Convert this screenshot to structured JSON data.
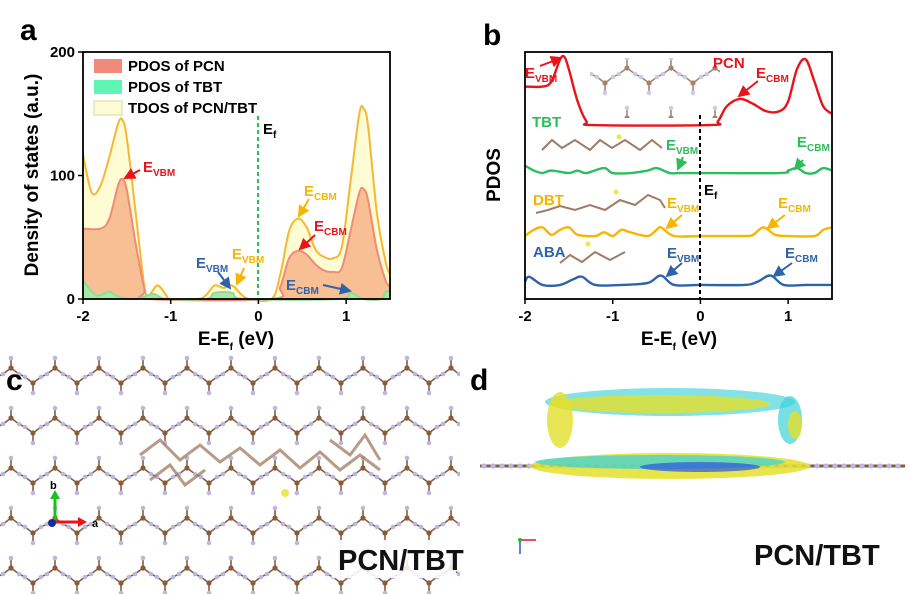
{
  "chart_data": [
    {
      "panel": "a",
      "type": "area",
      "panel_label": "a",
      "xlabel": {
        "main": "E-E",
        "sub": "f",
        "tail": " (eV)"
      },
      "ylabel": "Density of states (a.u.)",
      "xlim": [
        -2,
        1.5
      ],
      "ylim": [
        0,
        200
      ],
      "xticks": [
        "-2",
        "-1",
        "0",
        "1"
      ],
      "xtick_values": [
        -2,
        -1,
        0,
        1
      ],
      "yticks": [
        "0",
        "100",
        "200"
      ],
      "ytick_values": [
        0,
        100,
        200
      ],
      "legend_position": "top-left",
      "series": [
        {
          "name": "TDOS of PCN/TBT",
          "fill": "#fdfcd2",
          "stroke": "#f7b733",
          "x": [
            -2,
            -1.9,
            -1.8,
            -1.7,
            -1.6,
            -1.55,
            -1.5,
            -1.4,
            -1.3,
            -1.25,
            -1.15,
            -1.05,
            -1,
            -0.7,
            -0.6,
            -0.5,
            -0.4,
            -0.3,
            -0.2,
            -0.1,
            0.15,
            0.25,
            0.35,
            0.45,
            0.55,
            0.65,
            0.75,
            0.85,
            0.95,
            1.05,
            1.15,
            1.2,
            1.25,
            1.35,
            1.45,
            1.5
          ],
          "y": [
            117,
            86,
            92,
            115,
            142,
            145,
            130,
            70,
            10,
            3,
            11,
            3,
            0,
            0,
            3,
            11,
            9,
            11,
            4,
            0,
            0,
            20,
            55,
            65,
            58,
            40,
            34,
            33,
            42,
            95,
            150,
            154,
            140,
            70,
            30,
            20
          ]
        },
        {
          "name": "PDOS of PCN",
          "fill": "#f9bf94",
          "stroke": "#f08a7a",
          "x": [
            -2,
            -1.8,
            -1.7,
            -1.6,
            -1.55,
            -1.5,
            -1.4,
            -1.3,
            -1.25,
            0.15,
            0.25,
            0.35,
            0.45,
            0.55,
            0.65,
            0.75,
            0.85,
            0.95,
            1.05,
            1.15,
            1.2,
            1.25,
            1.35,
            1.45,
            1.5
          ],
          "y": [
            57,
            57,
            65,
            92,
            97,
            88,
            45,
            8,
            0,
            0,
            10,
            33,
            39,
            36,
            28,
            23,
            22,
            25,
            55,
            86,
            89,
            80,
            40,
            15,
            10
          ]
        },
        {
          "name": "PDOS of TBT",
          "fill": "#a6e9a6",
          "stroke": "#8fdc9a",
          "x": [
            -2,
            -1.85,
            -1.7,
            -1.6,
            -1.4,
            -1.2,
            -1.05,
            -0.6,
            -0.5,
            -0.3,
            -0.15,
            0.9,
            1.05,
            1.2,
            1.4,
            1.45,
            1.5
          ],
          "y": [
            15,
            3,
            6,
            2,
            0,
            4,
            0,
            0,
            5,
            5,
            0,
            0,
            5,
            0,
            0,
            6,
            6
          ]
        }
      ],
      "legend": [
        {
          "label": "PDOS of PCN",
          "color": "#f08a7a"
        },
        {
          "label": "PDOS of TBT",
          "color": "#5ef5b5"
        },
        {
          "label": "TDOS of PCN/TBT",
          "color": "#fdfcd2"
        }
      ],
      "fermi_label": {
        "main": "E",
        "sub": "f"
      },
      "annotations": [
        {
          "main": "E",
          "sub": "VBM",
          "color": "#e8141a"
        },
        {
          "main": "E",
          "sub": "VBM",
          "color": "#2f63a8"
        },
        {
          "main": "E",
          "sub": "VBM",
          "color": "#f7b500"
        },
        {
          "main": "E",
          "sub": "CBM",
          "color": "#f7b500"
        },
        {
          "main": "E",
          "sub": "CBM",
          "color": "#e8141a"
        },
        {
          "main": "E",
          "sub": "CBM",
          "color": "#2f63a8"
        }
      ]
    },
    {
      "panel": "b",
      "type": "line",
      "panel_label": "b",
      "xlabel": {
        "main": "E-E",
        "sub": "f",
        "tail": " (eV)"
      },
      "ylabel": "PDOS",
      "xlim": [
        -2,
        1.5
      ],
      "ylim": [
        0,
        100
      ],
      "xticks": [
        "-2",
        "-1",
        "0",
        "1"
      ],
      "xtick_values": [
        -2,
        -1,
        0,
        1
      ],
      "series": [
        {
          "name": "PCN",
          "color": "#e8141a",
          "x": [
            -2,
            -1.8,
            -1.7,
            -1.6,
            -1.55,
            -1.5,
            -1.4,
            -1.3,
            -1.2,
            0.1,
            0.2,
            0.3,
            0.45,
            0.6,
            0.75,
            0.9,
            1.0,
            1.1,
            1.2,
            1.3,
            1.4,
            1.5
          ],
          "y": [
            86,
            86,
            88,
            97,
            98,
            93,
            80,
            72,
            70.4,
            70.4,
            72,
            78,
            81,
            79,
            76,
            76,
            80,
            93,
            97,
            88,
            78,
            75
          ]
        },
        {
          "name": "TBT",
          "color": "#2cbd5c",
          "x": [
            -2,
            -1.9,
            -1.8,
            -1.7,
            -1.5,
            -1.4,
            -1.3,
            -1.1,
            -1.0,
            -0.8,
            -0.6,
            -0.5,
            -0.35,
            -0.25,
            0,
            0.9,
            1.0,
            1.1,
            1.2,
            1.3,
            1.4,
            1.5
          ],
          "y": [
            54,
            52,
            51,
            52,
            51,
            52,
            51,
            53,
            51,
            51,
            52,
            53,
            51,
            51,
            51,
            51,
            52,
            53,
            51,
            51,
            53,
            52
          ]
        },
        {
          "name": "DBT",
          "color": "#f7b500",
          "x": [
            -2,
            -1.9,
            -1.8,
            -1.7,
            -1.6,
            -1.5,
            -1.4,
            -1.2,
            -1.1,
            -1.0,
            -0.9,
            -0.8,
            -0.6,
            -0.5,
            -0.45,
            -0.3,
            0,
            0.5,
            0.6,
            0.72,
            0.85,
            1.0,
            1.3,
            1.4,
            1.5
          ],
          "y": [
            25.5,
            28,
            29,
            26,
            28,
            29,
            26,
            25.5,
            27,
            25.5,
            28,
            27,
            25.5,
            28,
            29,
            25.5,
            25.5,
            25.5,
            26,
            29,
            26,
            25.5,
            25.5,
            28,
            29
          ]
        },
        {
          "name": "ABA",
          "color": "#2f63a8",
          "x": [
            -2,
            -1.95,
            -1.8,
            -1.6,
            -1.45,
            -1.35,
            -1.2,
            -0.9,
            -0.6,
            -0.45,
            -0.3,
            0,
            0.5,
            0.65,
            0.8,
            0.95,
            1.2,
            1.5
          ],
          "y": [
            7,
            9,
            5.7,
            5.7,
            8,
            9,
            5.7,
            5.7,
            6.5,
            9.5,
            5.7,
            5.7,
            5.7,
            7,
            9.5,
            5.7,
            5.7,
            5.7
          ]
        }
      ],
      "labels": [
        {
          "text": "PCN",
          "color": "#e8141a"
        },
        {
          "text": "TBT",
          "color": "#2cbd5c"
        },
        {
          "text": "DBT",
          "color": "#f7b500"
        },
        {
          "text": "ABA",
          "color": "#2f63a8"
        }
      ],
      "fermi_label": {
        "main": "E",
        "sub": "f"
      },
      "annotations": [
        {
          "main": "E",
          "sub": "VBM",
          "color": "#e8141a"
        },
        {
          "main": "E",
          "sub": "CBM",
          "color": "#e8141a"
        },
        {
          "main": "E",
          "sub": "VBM",
          "color": "#2cbd5c"
        },
        {
          "main": "E",
          "sub": "CBM",
          "color": "#2cbd5c"
        },
        {
          "main": "E",
          "sub": "VBM",
          "color": "#f7b500"
        },
        {
          "main": "E",
          "sub": "CBM",
          "color": "#f7b500"
        },
        {
          "main": "E",
          "sub": "VBM",
          "color": "#2f63a8"
        },
        {
          "main": "E",
          "sub": "CBM",
          "color": "#2f63a8"
        }
      ]
    }
  ],
  "panel_c": {
    "label": "c",
    "title": "PCN/TBT",
    "axis_a": "a",
    "axis_b": "b"
  },
  "panel_d": {
    "label": "d",
    "title": "PCN/TBT"
  }
}
